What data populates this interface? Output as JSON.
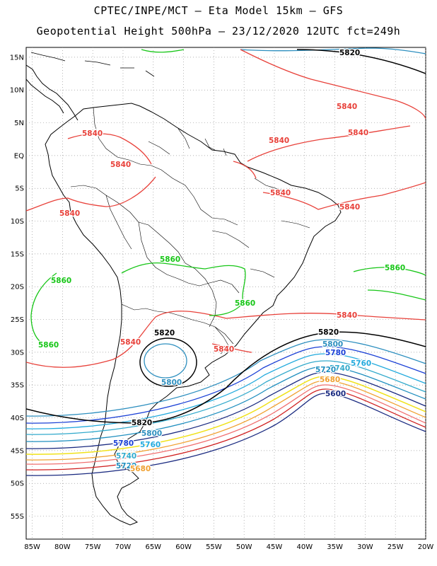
{
  "title_line1": "CPTEC/INPE/MCT –  Eta Model 15km – GFS",
  "title_line2": "Geopotential Height 500hPa – 23/12/2020 12UTC fct=249h",
  "lat_labels": [
    "15N",
    "10N",
    "5N",
    "EQ",
    "5S",
    "10S",
    "15S",
    "20S",
    "25S",
    "30S",
    "35S",
    "40S",
    "45S",
    "50S",
    "55S"
  ],
  "lon_labels": [
    "85W",
    "80W",
    "75W",
    "70W",
    "65W",
    "60W",
    "55W",
    "50W",
    "45W",
    "40W",
    "35W",
    "30W",
    "25W",
    "20W"
  ],
  "map_extent": {
    "lon_min": -86,
    "lon_max": -20,
    "lat_min": -58.5,
    "lat_max": 16.5
  },
  "grid": "dotted",
  "colors": {
    "c5720": "#1f8fbf",
    "c5740": "#33aacc",
    "c5760": "#22aadd",
    "c5780": "#1b40d6",
    "c5800": "#2d8fbf",
    "c5820": "#000000",
    "c5840": "#e8413a",
    "c5860": "#17c617",
    "yellow": "#f0e21a",
    "orange": "#f0a030",
    "salmon": "#f07070",
    "red": "#d02020",
    "navy": "#1a2a80",
    "coast": "#000000"
  },
  "contour_labels": [
    {
      "text": "5820",
      "color_key": "c5820"
    },
    {
      "text": "5840",
      "color_key": "c5840"
    },
    {
      "text": "5840",
      "color_key": "c5840"
    },
    {
      "text": "5840",
      "color_key": "c5840"
    },
    {
      "text": "5840",
      "color_key": "c5840"
    },
    {
      "text": "5840",
      "color_key": "c5840"
    },
    {
      "text": "5840",
      "color_key": "c5840"
    },
    {
      "text": "5840",
      "color_key": "c5840"
    },
    {
      "text": "5840",
      "color_key": "c5840"
    },
    {
      "text": "5840",
      "color_key": "c5840"
    },
    {
      "text": "5840",
      "color_key": "c5840"
    },
    {
      "text": "5840",
      "color_key": "c5840"
    },
    {
      "text": "5860",
      "color_key": "c5860"
    },
    {
      "text": "5860",
      "color_key": "c5860"
    },
    {
      "text": "5860",
      "color_key": "c5860"
    },
    {
      "text": "5860",
      "color_key": "c5860"
    },
    {
      "text": "5860",
      "color_key": "c5860"
    },
    {
      "text": "5820",
      "color_key": "c5820"
    },
    {
      "text": "5820",
      "color_key": "c5820"
    },
    {
      "text": "5800",
      "color_key": "c5800"
    },
    {
      "text": "5800",
      "color_key": "c5800"
    },
    {
      "text": "5780",
      "color_key": "c5780"
    },
    {
      "text": "5760",
      "color_key": "c5760"
    },
    {
      "text": "5740",
      "color_key": "c5740"
    },
    {
      "text": "5720",
      "color_key": "c5720"
    },
    {
      "text": "5820",
      "color_key": "c5820"
    },
    {
      "text": "5800",
      "color_key": "c5800"
    },
    {
      "text": "5780",
      "color_key": "c5780"
    },
    {
      "text": "5760",
      "color_key": "c5760"
    },
    {
      "text": "5740",
      "color_key": "c5740"
    },
    {
      "text": "5720",
      "color_key": "c5720"
    },
    {
      "text": "5680",
      "color_key": "orange"
    },
    {
      "text": "5680",
      "color_key": "orange"
    },
    {
      "text": "5600",
      "color_key": "navy"
    }
  ]
}
